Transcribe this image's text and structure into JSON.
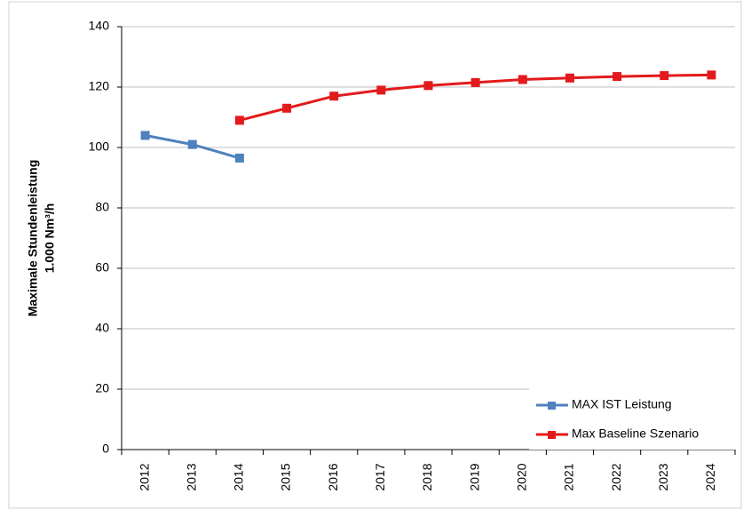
{
  "chart_data": {
    "type": "line",
    "ylabel": [
      "Maximale Stundenleistung",
      "1.000 Nm³/h"
    ],
    "categories": [
      "2012",
      "2013",
      "2014",
      "2015",
      "2016",
      "2017",
      "2018",
      "2019",
      "2020",
      "2021",
      "2022",
      "2023",
      "2024"
    ],
    "series": [
      {
        "name": "MAX IST Leistung",
        "color": "#4f81bd",
        "values": [
          104,
          101,
          96.5,
          null,
          null,
          null,
          null,
          null,
          null,
          null,
          null,
          null,
          null
        ]
      },
      {
        "name": "Max Baseline Szenario",
        "color": "#e31a1c",
        "values": [
          null,
          null,
          109,
          113,
          117,
          119,
          120.5,
          121.5,
          122.5,
          123,
          123.5,
          123.8,
          124
        ]
      }
    ],
    "ylim": [
      0,
      140
    ],
    "yticks": [
      0,
      20,
      40,
      60,
      80,
      100,
      120,
      140
    ],
    "grid": true,
    "legend": "lower right"
  }
}
